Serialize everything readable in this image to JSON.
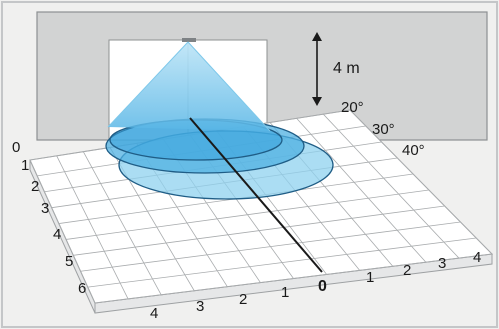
{
  "diagram": {
    "height_label": "4 m",
    "angle_labels": [
      "20°",
      "30°",
      "40°"
    ],
    "left_scale": [
      "0",
      "1",
      "2",
      "3",
      "4",
      "5",
      "6"
    ],
    "front_left_scale": [
      "4",
      "3",
      "2",
      "1"
    ],
    "front_center_label": "0",
    "front_right_scale": [
      "1",
      "2",
      "3",
      "4"
    ],
    "colors": {
      "wall": "#d2d3d3",
      "floor": "#ffffff",
      "grid": "#a9acae",
      "cone": "#7ec8ea",
      "ellipse_outer": "#8fd1ef",
      "ellipse_mid": "#4fb0e2",
      "ellipse_inner": "#39a3dc",
      "ellipse_stroke": "#1f5d86",
      "centerline": "#1a1a1a"
    }
  }
}
